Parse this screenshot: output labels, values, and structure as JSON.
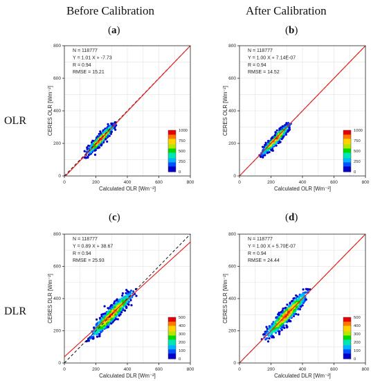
{
  "headers": {
    "before": "Before Calibration",
    "after": "After Calibration"
  },
  "rows": {
    "olr": "OLR",
    "dlr": "DLR"
  },
  "chart_data": [
    {
      "type": "scatter",
      "panel": "a",
      "xlabel": "Calculated OLR [Wm⁻²]",
      "ylabel": "CERES OLR [Wm⁻²]",
      "xlim": [
        0,
        800
      ],
      "ylim": [
        0,
        800
      ],
      "ticks": [
        0,
        200,
        400,
        600,
        800
      ],
      "grid": true,
      "stats": [
        "N = 118777",
        "Y = 1.01 X + -7.73",
        "R = 0.94",
        "RMSE = 15.21"
      ],
      "fit": {
        "slope": 1.01,
        "intercept": -7.73
      },
      "one_to_one": true,
      "cloud": {
        "x_center": 230,
        "y_center": 225,
        "x_range": [
          110,
          330
        ],
        "y_range": [
          110,
          330
        ],
        "spread": 18
      },
      "colorbar": {
        "max": 1000,
        "ticks": [
          0,
          250,
          500,
          750,
          1000
        ],
        "position": "lower-right"
      }
    },
    {
      "type": "scatter",
      "panel": "b",
      "xlabel": "Calculated OLR [Wm⁻²]",
      "ylabel": "CERES OLR [Wm⁻²]",
      "xlim": [
        0,
        800
      ],
      "ylim": [
        0,
        800
      ],
      "ticks": [
        0,
        200,
        400,
        600,
        800
      ],
      "grid": true,
      "stats": [
        "N = 118777",
        "Y = 1.00 X + 7.14E-07",
        "R = 0.94",
        "RMSE = 14.52"
      ],
      "fit": {
        "slope": 1.0,
        "intercept": 7.14e-07
      },
      "one_to_one": true,
      "cloud": {
        "x_center": 230,
        "y_center": 225,
        "x_range": [
          110,
          330
        ],
        "y_range": [
          110,
          330
        ],
        "spread": 18
      },
      "colorbar": {
        "max": 1000,
        "ticks": [
          0,
          250,
          500,
          750,
          1000
        ],
        "position": "lower-right"
      }
    },
    {
      "type": "scatter",
      "panel": "c",
      "xlabel": "Calculated DLR [Wm⁻²]",
      "ylabel": "CERES DLR [Wm⁻²]",
      "xlim": [
        0,
        800
      ],
      "ylim": [
        0,
        800
      ],
      "ticks": [
        0,
        200,
        400,
        600,
        800
      ],
      "grid": true,
      "stats": [
        "N = 118777",
        "Y = 0.89 X + 38.67",
        "R = 0.94",
        "RMSE = 25.93"
      ],
      "fit": {
        "slope": 0.89,
        "intercept": 38.67
      },
      "one_to_one": true,
      "cloud": {
        "x_center": 300,
        "y_center": 300,
        "x_range": [
          130,
          460
        ],
        "y_range": [
          130,
          460
        ],
        "spread": 30
      },
      "colorbar": {
        "max": 500,
        "ticks": [
          0,
          100,
          200,
          300,
          400,
          500
        ],
        "position": "lower-right"
      }
    },
    {
      "type": "scatter",
      "panel": "d",
      "xlabel": "Calculated DLR [Wm⁻²]",
      "ylabel": "CERES DLR [Wm⁻²]",
      "xlim": [
        0,
        800
      ],
      "ylim": [
        0,
        800
      ],
      "ticks": [
        0,
        200,
        400,
        600,
        800
      ],
      "grid": true,
      "stats": [
        "N = 118777",
        "Y = 1.00 X + 5.70E-07",
        "R = 0.94",
        "RMSE = 24.44"
      ],
      "fit": {
        "slope": 1.0,
        "intercept": 5.7e-07
      },
      "one_to_one": true,
      "cloud": {
        "x_center": 300,
        "y_center": 300,
        "x_range": [
          130,
          460
        ],
        "y_range": [
          130,
          460
        ],
        "spread": 30
      },
      "colorbar": {
        "max": 500,
        "ticks": [
          0,
          100,
          200,
          300,
          400,
          500
        ],
        "position": "lower-right"
      }
    }
  ],
  "colors": {
    "fit_line": "#e8231e",
    "one_to_one": "#111111",
    "grid": "#e6e6e6",
    "colormap": [
      "#0000c8",
      "#0050ff",
      "#00b4ff",
      "#00e6b4",
      "#00dc00",
      "#b4e600",
      "#ffd200",
      "#ff7800",
      "#e60000"
    ]
  }
}
